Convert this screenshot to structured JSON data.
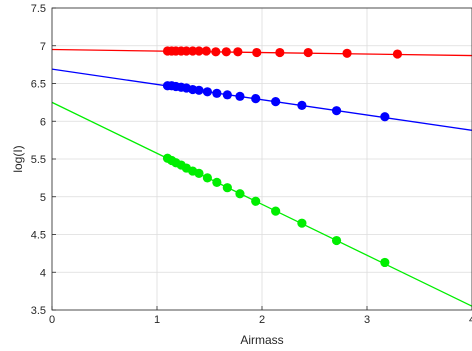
{
  "chart_data": {
    "type": "scatter",
    "xlabel": "Airmass",
    "ylabel": "log(I)",
    "xlim": [
      0,
      4
    ],
    "ylim": [
      3.5,
      7.5
    ],
    "xticks": [
      0,
      1,
      2,
      3,
      4
    ],
    "yticks": [
      3.5,
      4,
      4.5,
      5,
      5.5,
      6,
      6.5,
      7,
      7.5
    ],
    "xtick_labels": [
      "0",
      "1",
      "2",
      "3",
      "4"
    ],
    "ytick_labels": [
      "3.5",
      "4",
      "4.5",
      "5",
      "5.5",
      "6",
      "6.5",
      "7",
      "7.5"
    ],
    "grid": true,
    "series": [
      {
        "color": "#ff0000",
        "fit_line": [
          [
            0,
            6.95
          ],
          [
            4,
            6.87
          ]
        ],
        "points": [
          [
            1.1,
            6.93
          ],
          [
            1.14,
            6.93
          ],
          [
            1.18,
            6.93
          ],
          [
            1.23,
            6.93
          ],
          [
            1.28,
            6.93
          ],
          [
            1.34,
            6.93
          ],
          [
            1.4,
            6.93
          ],
          [
            1.47,
            6.93
          ],
          [
            1.56,
            6.92
          ],
          [
            1.66,
            6.92
          ],
          [
            1.77,
            6.92
          ],
          [
            1.95,
            6.91
          ],
          [
            2.17,
            6.91
          ],
          [
            2.44,
            6.91
          ],
          [
            2.81,
            6.9
          ],
          [
            3.29,
            6.89
          ]
        ]
      },
      {
        "color": "#0000ff",
        "fit_line": [
          [
            0,
            6.69
          ],
          [
            4,
            5.88
          ]
        ],
        "points": [
          [
            1.1,
            6.47
          ],
          [
            1.14,
            6.47
          ],
          [
            1.18,
            6.46
          ],
          [
            1.23,
            6.45
          ],
          [
            1.28,
            6.44
          ],
          [
            1.34,
            6.42
          ],
          [
            1.4,
            6.41
          ],
          [
            1.48,
            6.39
          ],
          [
            1.57,
            6.37
          ],
          [
            1.67,
            6.35
          ],
          [
            1.79,
            6.33
          ],
          [
            1.94,
            6.3
          ],
          [
            2.13,
            6.26
          ],
          [
            2.38,
            6.21
          ],
          [
            2.71,
            6.14
          ],
          [
            3.17,
            6.06
          ]
        ]
      },
      {
        "color": "#00ee00",
        "fit_line": [
          [
            0,
            6.25
          ],
          [
            4,
            3.55
          ]
        ],
        "points": [
          [
            1.1,
            5.51
          ],
          [
            1.14,
            5.48
          ],
          [
            1.18,
            5.45
          ],
          [
            1.23,
            5.42
          ],
          [
            1.28,
            5.38
          ],
          [
            1.34,
            5.34
          ],
          [
            1.4,
            5.31
          ],
          [
            1.48,
            5.25
          ],
          [
            1.57,
            5.19
          ],
          [
            1.67,
            5.12
          ],
          [
            1.79,
            5.04
          ],
          [
            1.94,
            4.94
          ],
          [
            2.13,
            4.81
          ],
          [
            2.38,
            4.65
          ],
          [
            2.71,
            4.42
          ],
          [
            3.17,
            4.13
          ]
        ]
      }
    ]
  }
}
